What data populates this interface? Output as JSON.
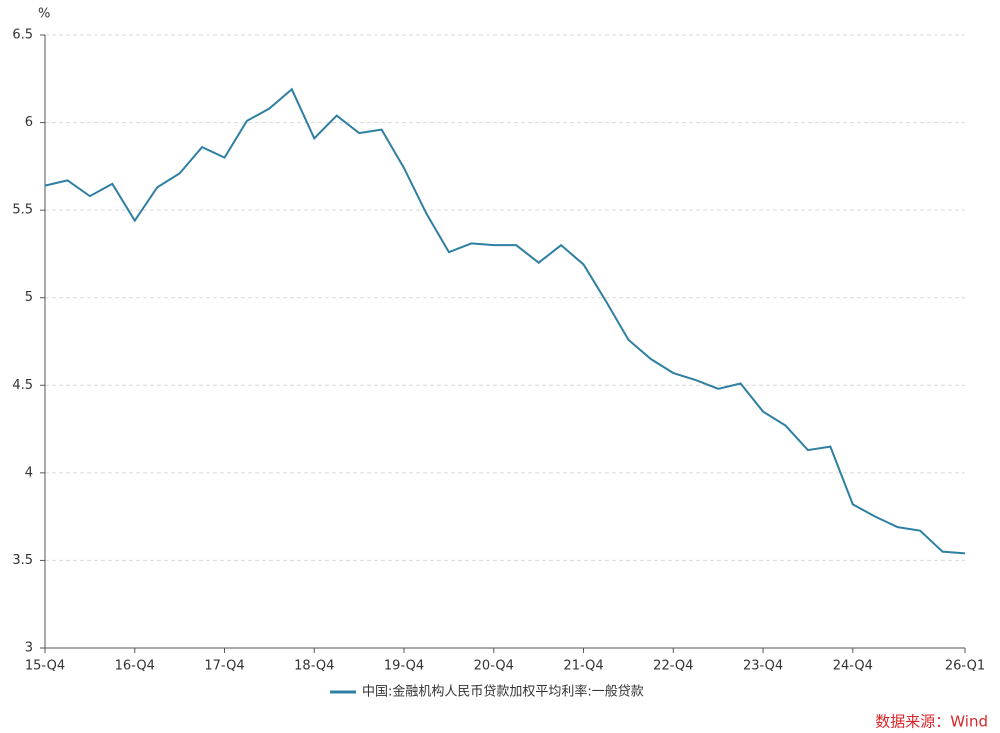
{
  "chart_data": {
    "type": "line",
    "y_unit": "%",
    "categories": [
      "15-Q4",
      null,
      null,
      null,
      "16-Q4",
      null,
      null,
      null,
      "17-Q4",
      null,
      null,
      null,
      "18-Q4",
      null,
      null,
      null,
      "19-Q4",
      null,
      null,
      null,
      "20-Q4",
      null,
      null,
      null,
      "21-Q4",
      null,
      null,
      null,
      "22-Q4",
      null,
      null,
      null,
      "23-Q4",
      null,
      null,
      null,
      "24-Q4",
      null,
      null,
      null,
      null,
      "26-Q1"
    ],
    "series": [
      {
        "name": "中国:金融机构人民币贷款加权平均利率:一般贷款",
        "color": "#2f7fa3",
        "values": [
          5.64,
          5.67,
          5.58,
          5.65,
          5.44,
          5.63,
          5.71,
          5.86,
          5.8,
          6.01,
          6.08,
          6.19,
          5.91,
          6.04,
          5.94,
          5.96,
          5.74,
          5.48,
          5.26,
          5.31,
          5.3,
          5.3,
          5.2,
          5.3,
          5.19,
          4.98,
          4.76,
          4.65,
          4.57,
          4.53,
          4.48,
          4.51,
          4.35,
          4.27,
          4.13,
          4.15,
          3.82,
          3.75,
          3.69,
          3.67,
          3.55,
          3.54
        ]
      }
    ],
    "ylim": [
      3,
      6.5
    ],
    "yticks": [
      3,
      3.5,
      4,
      4.5,
      5,
      5.5,
      6,
      6.5
    ],
    "grid": true,
    "legend": "bottom",
    "source": "数据来源：Wind"
  }
}
